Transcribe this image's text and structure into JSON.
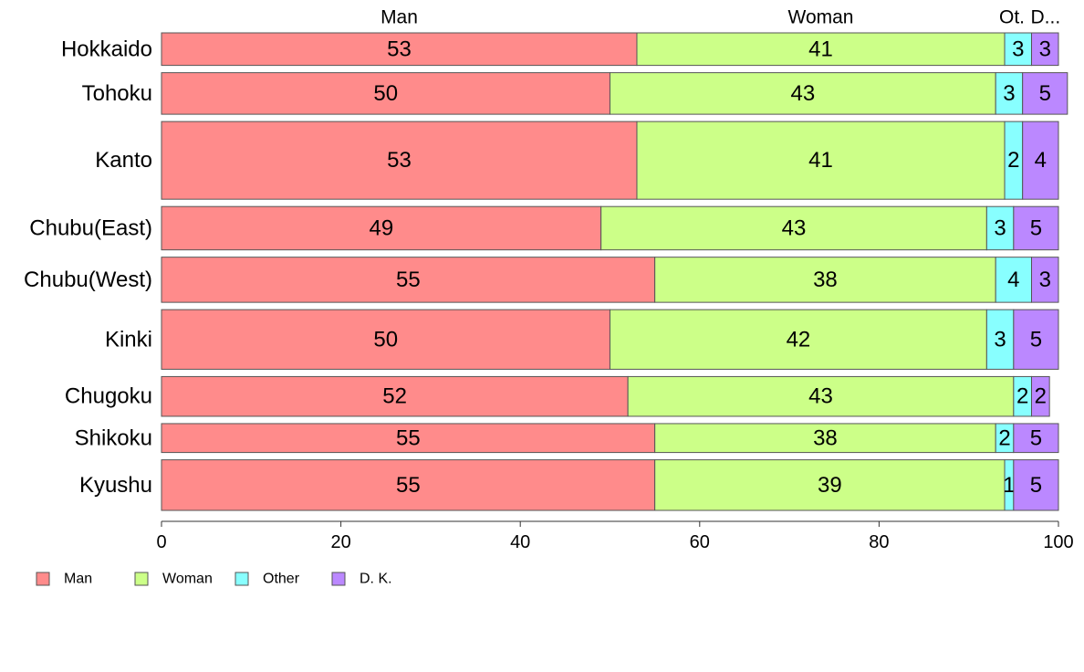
{
  "chart_data": {
    "type": "bar",
    "orientation": "horizontal",
    "stacked": true,
    "categories": [
      "Hokkaido",
      "Tohoku",
      "Kanto",
      "Chubu(East)",
      "Chubu(West)",
      "Kinki",
      "Chugoku",
      "Shikoku",
      "Kyushu"
    ],
    "category_weights": [
      36,
      46,
      86,
      48,
      50,
      66,
      44,
      32,
      56
    ],
    "series": [
      {
        "name": "Man",
        "color": "#ff8b8b",
        "values": [
          53,
          50,
          53,
          49,
          55,
          50,
          52,
          55,
          55
        ],
        "top_label": "Man"
      },
      {
        "name": "Woman",
        "color": "#ccff88",
        "values": [
          41,
          43,
          41,
          43,
          38,
          42,
          43,
          38,
          39
        ],
        "top_label": "Woman"
      },
      {
        "name": "Other",
        "color": "#88ffff",
        "values": [
          3,
          3,
          2,
          3,
          4,
          3,
          2,
          2,
          1
        ],
        "top_label": "Ot."
      },
      {
        "name": "D. K.",
        "color": "#bb88ff",
        "values": [
          3,
          5,
          4,
          5,
          3,
          5,
          2,
          5,
          5
        ],
        "top_label": "D..."
      }
    ],
    "xlim": [
      0,
      100
    ],
    "xticks": [
      0,
      20,
      40,
      60,
      80,
      100
    ],
    "legend_position": "bottom-left",
    "grid": false
  }
}
